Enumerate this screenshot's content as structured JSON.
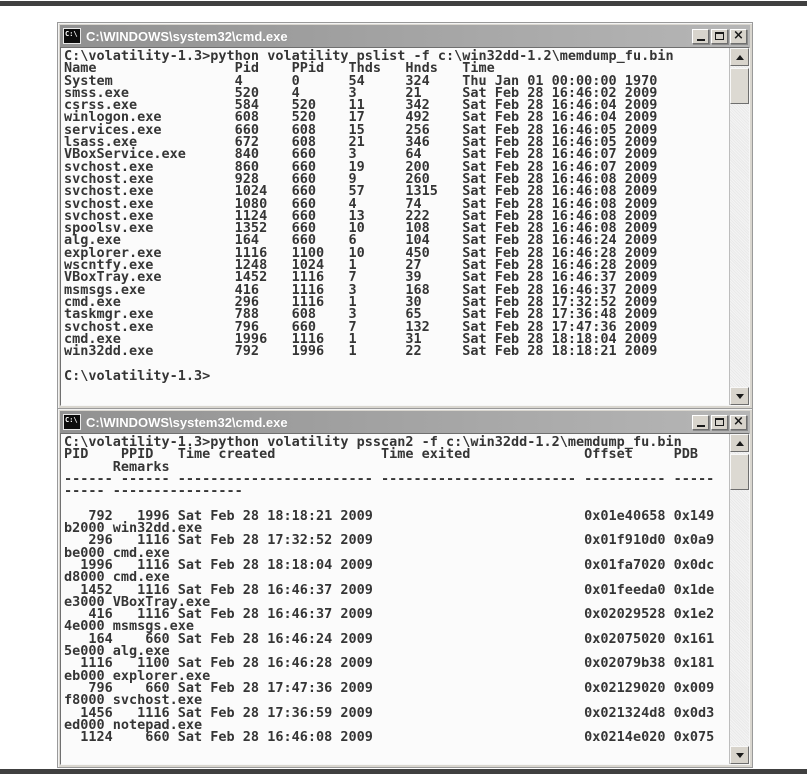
{
  "chrome": {
    "title": "C:\\WINDOWS\\system32\\cmd.exe",
    "icon_label": "C:\\",
    "close_glyph": "×"
  },
  "top_window": {
    "title": "C:\\WINDOWS\\system32\\cmd.exe",
    "command": "C:\\volatility-1.3>python volatility pslist -f c:\\win32dd-1.2\\memdump_fu.bin",
    "columns": [
      "Name",
      "Pid",
      "PPid",
      "Thds",
      "Hnds",
      "Time"
    ],
    "processes": [
      {
        "name": "System",
        "pid": 4,
        "ppid": 0,
        "thds": 54,
        "hnds": 324,
        "time": "Thu Jan 01 00:00:00 1970"
      },
      {
        "name": "smss.exe",
        "pid": 520,
        "ppid": 4,
        "thds": 3,
        "hnds": 21,
        "time": "Sat Feb 28 16:46:02 2009"
      },
      {
        "name": "csrss.exe",
        "pid": 584,
        "ppid": 520,
        "thds": 11,
        "hnds": 342,
        "time": "Sat Feb 28 16:46:04 2009"
      },
      {
        "name": "winlogon.exe",
        "pid": 608,
        "ppid": 520,
        "thds": 17,
        "hnds": 492,
        "time": "Sat Feb 28 16:46:04 2009"
      },
      {
        "name": "services.exe",
        "pid": 660,
        "ppid": 608,
        "thds": 15,
        "hnds": 256,
        "time": "Sat Feb 28 16:46:05 2009"
      },
      {
        "name": "lsass.exe",
        "pid": 672,
        "ppid": 608,
        "thds": 21,
        "hnds": 346,
        "time": "Sat Feb 28 16:46:05 2009"
      },
      {
        "name": "VBoxService.exe",
        "pid": 840,
        "ppid": 660,
        "thds": 3,
        "hnds": 64,
        "time": "Sat Feb 28 16:46:07 2009"
      },
      {
        "name": "svchost.exe",
        "pid": 860,
        "ppid": 660,
        "thds": 19,
        "hnds": 200,
        "time": "Sat Feb 28 16:46:07 2009"
      },
      {
        "name": "svchost.exe",
        "pid": 928,
        "ppid": 660,
        "thds": 9,
        "hnds": 260,
        "time": "Sat Feb 28 16:46:08 2009"
      },
      {
        "name": "svchost.exe",
        "pid": 1024,
        "ppid": 660,
        "thds": 57,
        "hnds": 1315,
        "time": "Sat Feb 28 16:46:08 2009"
      },
      {
        "name": "svchost.exe",
        "pid": 1080,
        "ppid": 660,
        "thds": 4,
        "hnds": 74,
        "time": "Sat Feb 28 16:46:08 2009"
      },
      {
        "name": "svchost.exe",
        "pid": 1124,
        "ppid": 660,
        "thds": 13,
        "hnds": 222,
        "time": "Sat Feb 28 16:46:08 2009"
      },
      {
        "name": "spoolsv.exe",
        "pid": 1352,
        "ppid": 660,
        "thds": 10,
        "hnds": 108,
        "time": "Sat Feb 28 16:46:08 2009"
      },
      {
        "name": "alg.exe",
        "pid": 164,
        "ppid": 660,
        "thds": 6,
        "hnds": 104,
        "time": "Sat Feb 28 16:46:24 2009"
      },
      {
        "name": "explorer.exe",
        "pid": 1116,
        "ppid": 1100,
        "thds": 10,
        "hnds": 450,
        "time": "Sat Feb 28 16:46:28 2009"
      },
      {
        "name": "wscntfy.exe",
        "pid": 1248,
        "ppid": 1024,
        "thds": 1,
        "hnds": 27,
        "time": "Sat Feb 28 16:46:28 2009"
      },
      {
        "name": "VBoxTray.exe",
        "pid": 1452,
        "ppid": 1116,
        "thds": 7,
        "hnds": 39,
        "time": "Sat Feb 28 16:46:37 2009"
      },
      {
        "name": "msmsgs.exe",
        "pid": 416,
        "ppid": 1116,
        "thds": 3,
        "hnds": 168,
        "time": "Sat Feb 28 16:46:37 2009"
      },
      {
        "name": "cmd.exe",
        "pid": 296,
        "ppid": 1116,
        "thds": 1,
        "hnds": 30,
        "time": "Sat Feb 28 17:32:52 2009"
      },
      {
        "name": "taskmgr.exe",
        "pid": 788,
        "ppid": 608,
        "thds": 3,
        "hnds": 65,
        "time": "Sat Feb 28 17:36:48 2009"
      },
      {
        "name": "svchost.exe",
        "pid": 796,
        "ppid": 660,
        "thds": 7,
        "hnds": 132,
        "time": "Sat Feb 28 17:47:36 2009"
      },
      {
        "name": "cmd.exe",
        "pid": 1996,
        "ppid": 1116,
        "thds": 1,
        "hnds": 31,
        "time": "Sat Feb 28 18:18:04 2009"
      },
      {
        "name": "win32dd.exe",
        "pid": 792,
        "ppid": 1996,
        "thds": 1,
        "hnds": 22,
        "time": "Sat Feb 28 18:18:21 2009"
      }
    ],
    "prompt": "C:\\volatility-1.3>"
  },
  "bottom_window": {
    "title": "C:\\WINDOWS\\system32\\cmd.exe",
    "command": "C:\\volatility-1.3>python volatility psscan2 -f c:\\win32dd-1.2\\memdump_fu.bin",
    "header_line1": "PID    PPID   Time created             Time exited              Offset     PDB",
    "header_line2": "      Remarks",
    "separator_line1": "------ ------ ------------------------ ------------------------ ---------- -----",
    "separator_line2": "----- ----------------",
    "processes": [
      {
        "pid": 792,
        "ppid": 1996,
        "time_created": "Sat Feb 28 18:18:21 2009",
        "time_exited": "",
        "offset": "0x01e40658",
        "pdb": "0x149b2000",
        "remarks": "win32dd.exe"
      },
      {
        "pid": 296,
        "ppid": 1116,
        "time_created": "Sat Feb 28 17:32:52 2009",
        "time_exited": "",
        "offset": "0x01f910d0",
        "pdb": "0x0a9be000",
        "remarks": "cmd.exe"
      },
      {
        "pid": 1996,
        "ppid": 1116,
        "time_created": "Sat Feb 28 18:18:04 2009",
        "time_exited": "",
        "offset": "0x01fa7020",
        "pdb": "0x0dcd8000",
        "remarks": "cmd.exe"
      },
      {
        "pid": 1452,
        "ppid": 1116,
        "time_created": "Sat Feb 28 16:46:37 2009",
        "time_exited": "",
        "offset": "0x01feeda0",
        "pdb": "0x1dee3000",
        "remarks": "VBoxTray.exe"
      },
      {
        "pid": 416,
        "ppid": 1116,
        "time_created": "Sat Feb 28 16:46:37 2009",
        "time_exited": "",
        "offset": "0x02029528",
        "pdb": "0x1e24e000",
        "remarks": "msmsgs.exe"
      },
      {
        "pid": 164,
        "ppid": 660,
        "time_created": "Sat Feb 28 16:46:24 2009",
        "time_exited": "",
        "offset": "0x02075020",
        "pdb": "0x1615e000",
        "remarks": "alg.exe"
      },
      {
        "pid": 1116,
        "ppid": 1100,
        "time_created": "Sat Feb 28 16:46:28 2009",
        "time_exited": "",
        "offset": "0x02079b38",
        "pdb": "0x181eb000",
        "remarks": "explorer.exe"
      },
      {
        "pid": 796,
        "ppid": 660,
        "time_created": "Sat Feb 28 17:47:36 2009",
        "time_exited": "",
        "offset": "0x02129020",
        "pdb": "0x009f8000",
        "remarks": "svchost.exe"
      },
      {
        "pid": 1456,
        "ppid": 1116,
        "time_created": "Sat Feb 28 17:36:59 2009",
        "time_exited": "",
        "offset": "0x021324d8",
        "pdb": "0x0d3ed000",
        "remarks": "notepad.exe"
      },
      {
        "pid": 1124,
        "ppid": 660,
        "time_created": "Sat Feb 28 16:46:08 2009",
        "time_exited": "",
        "offset": "0x0214e020",
        "pdb": "0x075",
        "remarks": ""
      }
    ]
  }
}
